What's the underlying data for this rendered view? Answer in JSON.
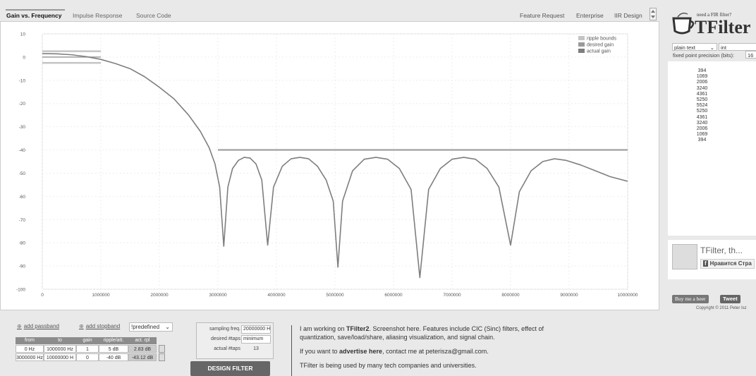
{
  "tabs": [
    "Gain vs. Frequency",
    "Impulse Response",
    "Source Code"
  ],
  "top_links": [
    "Feature Request",
    "Enterprise",
    "IIR Design"
  ],
  "chart_data": {
    "type": "line",
    "xlim": [
      0,
      10000000
    ],
    "xticks": [
      0,
      1000000,
      2000000,
      3000000,
      4000000,
      5000000,
      6000000,
      7000000,
      8000000,
      9000000,
      10000000
    ],
    "ylim": [
      -100,
      10
    ],
    "yticks": [
      10,
      0,
      -10,
      -20,
      -30,
      -40,
      -50,
      -60,
      -70,
      -80,
      -90,
      -100
    ],
    "grid": true,
    "legend": "upper right",
    "series": [
      {
        "name": "ripple bounds",
        "color": "#c4c4c4",
        "x": [
          0,
          1000000,
          null,
          0,
          1000000,
          null,
          3000000,
          10000000
        ],
        "values": [
          2.5,
          2.5,
          null,
          -2.5,
          -2.5,
          null,
          -40,
          -40
        ]
      },
      {
        "name": "desired gain",
        "color": "#9a9a9a",
        "x": [
          0,
          1000000,
          null,
          3000000,
          10000000
        ],
        "values": [
          0,
          0,
          null,
          -40,
          -40
        ]
      },
      {
        "name": "actual gain",
        "color": "#7e7e7e",
        "x": [
          0,
          250000,
          500000,
          750000,
          1000000,
          1250000,
          1500000,
          1750000,
          2000000,
          2250000,
          2500000,
          2700000,
          2850000,
          2950000,
          3030000,
          3100000,
          3170000,
          3250000,
          3350000,
          3450000,
          3550000,
          3650000,
          3750000,
          3850000,
          3950000,
          4100000,
          4250000,
          4400000,
          4550000,
          4700000,
          4850000,
          4970000,
          5050000,
          5130000,
          5300000,
          5500000,
          5700000,
          5900000,
          6100000,
          6300000,
          6450000,
          6600000,
          6800000,
          7000000,
          7200000,
          7400000,
          7600000,
          7800000,
          8000000,
          8150000,
          8350000,
          8550000,
          8750000,
          8950000,
          9200000,
          9450000,
          9700000,
          10000000
        ],
        "values": [
          1.5,
          1.4,
          1.0,
          0.2,
          -1,
          -2.8,
          -5,
          -8.5,
          -13,
          -18,
          -25,
          -32,
          -39,
          -46,
          -56,
          -81.5,
          -56,
          -48,
          -44.5,
          -43.2,
          -43.5,
          -46,
          -53,
          -81,
          -56,
          -47,
          -43.8,
          -43.2,
          -43.8,
          -47,
          -53,
          -62,
          -90.5,
          -62,
          -49,
          -44,
          -43.2,
          -44,
          -48,
          -57,
          -95,
          -57,
          -48,
          -44,
          -43.2,
          -44,
          -48,
          -56,
          -81,
          -58,
          -49,
          -45,
          -43.8,
          -44.5,
          -46.5,
          -49,
          -51.5,
          -53.5
        ]
      }
    ]
  },
  "sidebar": {
    "promo": "need a FIR filter?",
    "logo": "TFilter",
    "format": "plain text",
    "number_type": "int",
    "precision_label": "fixed point precision (bits):",
    "precision": "16",
    "coefficients": [
      394,
      1069,
      2006,
      3240,
      4361,
      5250,
      5524,
      5250,
      4361,
      3240,
      2006,
      1069,
      394
    ],
    "fb_title": "TFilter, th...",
    "fb_like": "Нравится Стра",
    "beer": "Buy me a beer",
    "tweet": "Tweet",
    "copyright": "Copyright © 2011 Peter Isz"
  },
  "bands": {
    "add_passband": "add passband",
    "add_stopband": "add stopband",
    "predefined": "!predefined",
    "headers": [
      "from",
      "to",
      "gain",
      "ripple/att.",
      "act. rpl"
    ],
    "rows": [
      [
        "0 Hz",
        "1000000 Hz",
        "1",
        "5 dB",
        "2.83 dB"
      ],
      [
        "3000000 Hz",
        "10000000 H",
        "0",
        "-40 dB",
        "-43.12 dB"
      ]
    ]
  },
  "design": {
    "labels": [
      "sampling freq.",
      "desired #taps",
      "actual #taps"
    ],
    "inputs": [
      "20000000 H",
      "minimum",
      "13"
    ],
    "button": "DESIGN FILTER"
  },
  "info": [
    [
      "I am working on ",
      "TFilter2",
      ". Screenshot here. Features include CIC (Sinc) filters, effect of quantization, save/load/share, aliasing visualization, and signal chain."
    ],
    [
      "If you want to ",
      "advertise here",
      ", contact me at peterisza@gmail.com."
    ],
    [
      "TFilter is being used by many tech companies and universities."
    ]
  ]
}
